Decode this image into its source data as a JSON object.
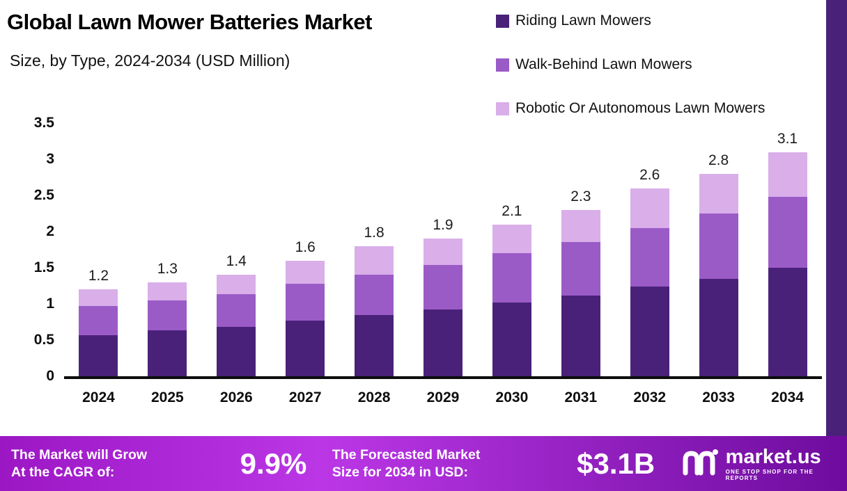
{
  "header": {
    "title": "Global Lawn Mower Batteries Market",
    "subtitle": "Size, by Type, 2024-2034 (USD Million)"
  },
  "legend": [
    {
      "label": "Riding Lawn Mowers",
      "color": "#4a2179"
    },
    {
      "label": "Walk-Behind Lawn Mowers",
      "color": "#9a5bc7"
    },
    {
      "label": "Robotic Or Autonomous Lawn Mowers",
      "color": "#d9aee9"
    }
  ],
  "chart_data": {
    "type": "bar",
    "stacked": true,
    "title": "Global Lawn Mower Batteries Market Size, by Type, 2024-2034 (USD Million)",
    "categories": [
      "2024",
      "2025",
      "2026",
      "2027",
      "2028",
      "2029",
      "2030",
      "2031",
      "2032",
      "2033",
      "2034"
    ],
    "series": [
      {
        "name": "Riding Lawn Mowers",
        "color": "#4a2179",
        "values": [
          0.57,
          0.63,
          0.68,
          0.77,
          0.85,
          0.92,
          1.02,
          1.12,
          1.24,
          1.35,
          1.5
        ]
      },
      {
        "name": "Walk-Behind Lawn Mowers",
        "color": "#9a5bc7",
        "values": [
          0.4,
          0.42,
          0.45,
          0.51,
          0.55,
          0.62,
          0.68,
          0.74,
          0.81,
          0.9,
          0.98
        ]
      },
      {
        "name": "Robotic Or Autonomous Lawn Mowers",
        "color": "#d9aee9",
        "values": [
          0.23,
          0.25,
          0.27,
          0.32,
          0.4,
          0.36,
          0.4,
          0.44,
          0.55,
          0.55,
          0.62
        ]
      }
    ],
    "totals": [
      "1.2",
      "1.3",
      "1.4",
      "1.6",
      "1.8",
      "1.9",
      "2.1",
      "2.3",
      "2.6",
      "2.8",
      "3.1"
    ],
    "xlabel": "",
    "ylabel": "",
    "ylim": [
      0,
      3.5
    ],
    "yticks": [
      3.5,
      3,
      2.5,
      2,
      1.5,
      1,
      0.5,
      0
    ],
    "grid": false,
    "legend_position": "top-right"
  },
  "colors": {
    "accent_strip": "#4a2179",
    "axis": "#0d0d0d",
    "footer_gradient_left": "#9c17c4",
    "footer_gradient_mid": "#bb37e6",
    "footer_gradient_right": "#6e0c9e"
  },
  "footer": {
    "cagr_label_line1": "The Market will Grow",
    "cagr_label_line2": "At the CAGR of:",
    "cagr_value": "9.9%",
    "forecast_label_line1": "The Forecasted Market",
    "forecast_label_line2": "Size for 2034 in USD:",
    "forecast_value": "$3.1B",
    "brand": "market.us",
    "brand_tagline": "ONE STOP SHOP FOR THE REPORTS"
  }
}
